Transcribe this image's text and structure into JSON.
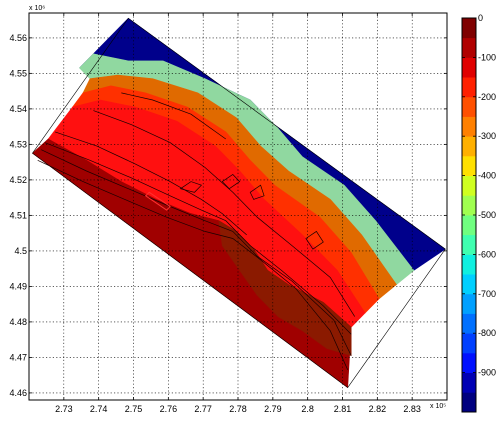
{
  "chart_data": {
    "type": "filled-contour map with colorbar",
    "x_exponent_label": "x 10⁵",
    "y_exponent_label": "x 10⁶",
    "xlim": [
      2.72,
      2.84
    ],
    "ylim": [
      4.458,
      4.567
    ],
    "x_ticks": [
      2.73,
      2.74,
      2.75,
      2.76,
      2.77,
      2.78,
      2.79,
      2.8,
      2.81,
      2.82,
      2.83
    ],
    "x_tick_labels": [
      "2.73",
      "2.74",
      "2.75",
      "2.76",
      "2.77",
      "2.78",
      "2.79",
      "2.8",
      "2.81",
      "2.82",
      "2.83"
    ],
    "y_ticks": [
      4.46,
      4.47,
      4.48,
      4.49,
      4.5,
      4.51,
      4.52,
      4.53,
      4.54,
      4.55,
      4.56
    ],
    "y_tick_labels": [
      "4.46",
      "4.47",
      "4.48",
      "4.49",
      "4.5",
      "4.51",
      "4.52",
      "4.53",
      "4.54",
      "4.55",
      "4.56"
    ],
    "grid": true,
    "colorbar": {
      "min": -1000,
      "max": 0,
      "ticks": [
        0,
        -100,
        -200,
        -300,
        -400,
        -500,
        -600,
        -700,
        -800,
        -900
      ],
      "tick_labels": [
        "0",
        "-100",
        "-200",
        "-300",
        "-400",
        "-500",
        "-600",
        "-700",
        "-800",
        "-900"
      ],
      "level_colors": [
        "#00007f",
        "#0000b4",
        "#0010ff",
        "#0040ff",
        "#0070ff",
        "#00a0ff",
        "#00d0ff",
        "#10f0e0",
        "#40ffb0",
        "#70ff80",
        "#a0ff50",
        "#d0ff20",
        "#ffe000",
        "#ffb000",
        "#ff8000",
        "#ff5000",
        "#ff2000",
        "#e00000",
        "#b00000",
        "#7f0000"
      ]
    },
    "domain_outline": [
      [
        2.721,
        4.5275
      ],
      [
        2.7485,
        4.5655
      ],
      [
        2.8395,
        4.5005
      ],
      [
        2.8115,
        4.4615
      ]
    ],
    "regions": [
      {
        "name": "deep",
        "color": "#00008b",
        "polygon": [
          [
            2.7485,
            4.5655
          ],
          [
            2.8395,
            4.5005
          ],
          [
            2.8305,
            4.4945
          ],
          [
            2.8195,
            4.5085
          ],
          [
            2.8105,
            4.5185
          ],
          [
            2.7985,
            4.5265
          ],
          [
            2.7915,
            4.5345
          ],
          [
            2.7835,
            4.5425
          ],
          [
            2.7705,
            4.5485
          ],
          [
            2.7585,
            4.5535
          ],
          [
            2.7485,
            4.5535
          ],
          [
            2.7385,
            4.5555
          ],
          [
            2.7345,
            4.5515
          ]
        ]
      },
      {
        "name": "shelf-light",
        "color": "#90d8a0",
        "polygon": [
          [
            2.7345,
            4.5515
          ],
          [
            2.7385,
            4.5555
          ],
          [
            2.7485,
            4.5535
          ],
          [
            2.7585,
            4.5535
          ],
          [
            2.7705,
            4.5485
          ],
          [
            2.7835,
            4.5425
          ],
          [
            2.7915,
            4.5345
          ],
          [
            2.7985,
            4.5265
          ],
          [
            2.8105,
            4.5185
          ],
          [
            2.8195,
            4.5085
          ],
          [
            2.8305,
            4.4945
          ],
          [
            2.8255,
            4.4905
          ],
          [
            2.8155,
            4.5045
          ],
          [
            2.8065,
            4.5145
          ],
          [
            2.7945,
            4.5225
          ],
          [
            2.7865,
            4.5295
          ],
          [
            2.7795,
            4.5375
          ],
          [
            2.7685,
            4.5445
          ],
          [
            2.7555,
            4.5485
          ],
          [
            2.7455,
            4.5495
          ],
          [
            2.7375,
            4.5485
          ]
        ]
      },
      {
        "name": "slope-orange",
        "color": "#e06a00",
        "polygon": [
          [
            2.7375,
            4.5485
          ],
          [
            2.7455,
            4.5495
          ],
          [
            2.7555,
            4.5485
          ],
          [
            2.7685,
            4.5445
          ],
          [
            2.7795,
            4.5375
          ],
          [
            2.7865,
            4.5295
          ],
          [
            2.7945,
            4.5225
          ],
          [
            2.8065,
            4.5145
          ],
          [
            2.8155,
            4.5045
          ],
          [
            2.8255,
            4.4905
          ],
          [
            2.8205,
            4.4865
          ],
          [
            2.8125,
            4.4995
          ],
          [
            2.8035,
            4.5095
          ],
          [
            2.7905,
            4.5185
          ],
          [
            2.7835,
            4.5255
          ],
          [
            2.7765,
            4.5335
          ],
          [
            2.7655,
            4.5405
          ],
          [
            2.7535,
            4.5445
          ],
          [
            2.7435,
            4.5465
          ],
          [
            2.7355,
            4.5445
          ]
        ]
      },
      {
        "name": "slope-red-orange",
        "color": "#ff3000",
        "polygon": [
          [
            2.7355,
            4.5445
          ],
          [
            2.7435,
            4.5465
          ],
          [
            2.7535,
            4.5445
          ],
          [
            2.7655,
            4.5405
          ],
          [
            2.7765,
            4.5335
          ],
          [
            2.7835,
            4.5255
          ],
          [
            2.7905,
            4.5185
          ],
          [
            2.8035,
            4.5095
          ],
          [
            2.8125,
            4.4995
          ],
          [
            2.8205,
            4.4865
          ],
          [
            2.8165,
            4.4825
          ],
          [
            2.8085,
            4.4945
          ],
          [
            2.7985,
            4.5045
          ],
          [
            2.7875,
            4.5145
          ],
          [
            2.7805,
            4.5225
          ],
          [
            2.7735,
            4.5295
          ],
          [
            2.7625,
            4.5365
          ],
          [
            2.7505,
            4.5405
          ],
          [
            2.7405,
            4.5425
          ],
          [
            2.7325,
            4.5405
          ]
        ]
      },
      {
        "name": "plateau-red",
        "color": "#ff1010",
        "polygon": [
          [
            2.7325,
            4.5405
          ],
          [
            2.7405,
            4.5425
          ],
          [
            2.7505,
            4.5405
          ],
          [
            2.7625,
            4.5365
          ],
          [
            2.7735,
            4.5295
          ],
          [
            2.7805,
            4.5225
          ],
          [
            2.7875,
            4.5145
          ],
          [
            2.7985,
            4.5045
          ],
          [
            2.8085,
            4.4945
          ],
          [
            2.8165,
            4.4825
          ],
          [
            2.8125,
            4.4785
          ],
          [
            2.8045,
            4.4855
          ],
          [
            2.7945,
            4.4905
          ],
          [
            2.7885,
            4.4945
          ],
          [
            2.7845,
            4.5005
          ],
          [
            2.7795,
            4.5055
          ],
          [
            2.7745,
            4.5085
          ],
          [
            2.7665,
            4.5105
          ],
          [
            2.7565,
            4.5145
          ],
          [
            2.7465,
            4.5195
          ],
          [
            2.7365,
            4.5255
          ],
          [
            2.7255,
            4.5315
          ]
        ]
      },
      {
        "name": "shallow-darkred",
        "color": "#a00000",
        "polygon": [
          [
            2.721,
            4.5275
          ],
          [
            2.7255,
            4.5315
          ],
          [
            2.7365,
            4.5255
          ],
          [
            2.7465,
            4.5195
          ],
          [
            2.7565,
            4.5145
          ],
          [
            2.7665,
            4.5105
          ],
          [
            2.7745,
            4.5085
          ],
          [
            2.7795,
            4.5055
          ],
          [
            2.7845,
            4.5005
          ],
          [
            2.7885,
            4.4945
          ],
          [
            2.7945,
            4.4905
          ],
          [
            2.8045,
            4.4855
          ],
          [
            2.8125,
            4.4785
          ],
          [
            2.8115,
            4.4615
          ]
        ]
      },
      {
        "name": "escarpment-brown",
        "color": "#8b1a00",
        "polygon": [
          [
            2.7745,
            4.5085
          ],
          [
            2.7795,
            4.5055
          ],
          [
            2.7845,
            4.5005
          ],
          [
            2.7885,
            4.4945
          ],
          [
            2.7945,
            4.4905
          ],
          [
            2.8045,
            4.4855
          ],
          [
            2.8125,
            4.4785
          ],
          [
            2.8125,
            4.4705
          ],
          [
            2.8055,
            4.4725
          ],
          [
            2.7985,
            4.4775
          ],
          [
            2.7915,
            4.4815
          ],
          [
            2.7855,
            4.4875
          ],
          [
            2.7805,
            4.4945
          ],
          [
            2.7755,
            4.5015
          ]
        ]
      }
    ],
    "contour_lines": [
      [
        [
          2.7225,
          4.5255
        ],
        [
          2.7355,
          4.5195
        ],
        [
          2.7475,
          4.5145
        ],
        [
          2.7595,
          4.5095
        ],
        [
          2.7705,
          4.5055
        ],
        [
          2.7785,
          4.5035
        ],
        [
          2.7865,
          4.4975
        ],
        [
          2.7965,
          4.4895
        ],
        [
          2.8065,
          4.4775
        ],
        [
          2.8115,
          4.4665
        ]
      ],
      [
        [
          2.7235,
          4.5285
        ],
        [
          2.7365,
          4.5225
        ],
        [
          2.7485,
          4.5175
        ],
        [
          2.7605,
          4.5125
        ],
        [
          2.7705,
          4.5085
        ],
        [
          2.7785,
          4.5055
        ],
        [
          2.7855,
          4.4985
        ],
        [
          2.7955,
          4.4915
        ],
        [
          2.8075,
          4.4805
        ],
        [
          2.8125,
          4.4705
        ]
      ],
      [
        [
          2.7245,
          4.5305
        ],
        [
          2.7375,
          4.5255
        ],
        [
          2.7495,
          4.5205
        ],
        [
          2.7605,
          4.5155
        ],
        [
          2.7695,
          4.5115
        ],
        [
          2.7765,
          4.5085
        ],
        [
          2.7835,
          4.5015
        ],
        [
          2.7925,
          4.4945
        ],
        [
          2.8045,
          4.4845
        ],
        [
          2.8125,
          4.4765
        ]
      ],
      [
        [
          2.7275,
          4.5335
        ],
        [
          2.7395,
          4.5295
        ],
        [
          2.7505,
          4.5245
        ],
        [
          2.7605,
          4.5195
        ],
        [
          2.7695,
          4.5145
        ],
        [
          2.7755,
          4.5105
        ],
        [
          2.7825,
          4.5045
        ]
      ],
      [
        [
          2.7385,
          4.5395
        ],
        [
          2.7495,
          4.5355
        ],
        [
          2.7605,
          4.5305
        ],
        [
          2.7705,
          4.5235
        ],
        [
          2.7785,
          4.5165
        ],
        [
          2.7855,
          4.5095
        ],
        [
          2.7955,
          4.5015
        ],
        [
          2.8065,
          4.4925
        ],
        [
          2.8135,
          4.4815
        ]
      ],
      [
        [
          2.7465,
          4.5445
        ],
        [
          2.7555,
          4.5425
        ],
        [
          2.7665,
          4.5385
        ],
        [
          2.7765,
          4.5315
        ]
      ]
    ],
    "contour_loops": [
      [
        [
          2.7635,
          4.5175
        ],
        [
          2.7665,
          4.5195
        ],
        [
          2.7695,
          4.5185
        ],
        [
          2.7675,
          4.5165
        ]
      ],
      [
        [
          2.7835,
          4.5165
        ],
        [
          2.7865,
          4.5185
        ],
        [
          2.7875,
          4.5155
        ],
        [
          2.7845,
          4.5145
        ]
      ],
      [
        [
          2.7995,
          4.5035
        ],
        [
          2.8025,
          4.5055
        ],
        [
          2.8045,
          4.5025
        ],
        [
          2.8015,
          4.5005
        ]
      ],
      [
        [
          2.7755,
          4.5195
        ],
        [
          2.7785,
          4.5215
        ],
        [
          2.7805,
          4.5195
        ],
        [
          2.7775,
          4.5175
        ]
      ]
    ],
    "annotation_box": {
      "color": "#ff3030",
      "polygon": [
        [
          2.7535,
          4.5155
        ],
        [
          2.7595,
          4.5115
        ],
        [
          2.7605,
          4.5125
        ],
        [
          2.7545,
          4.5165
        ]
      ]
    }
  }
}
